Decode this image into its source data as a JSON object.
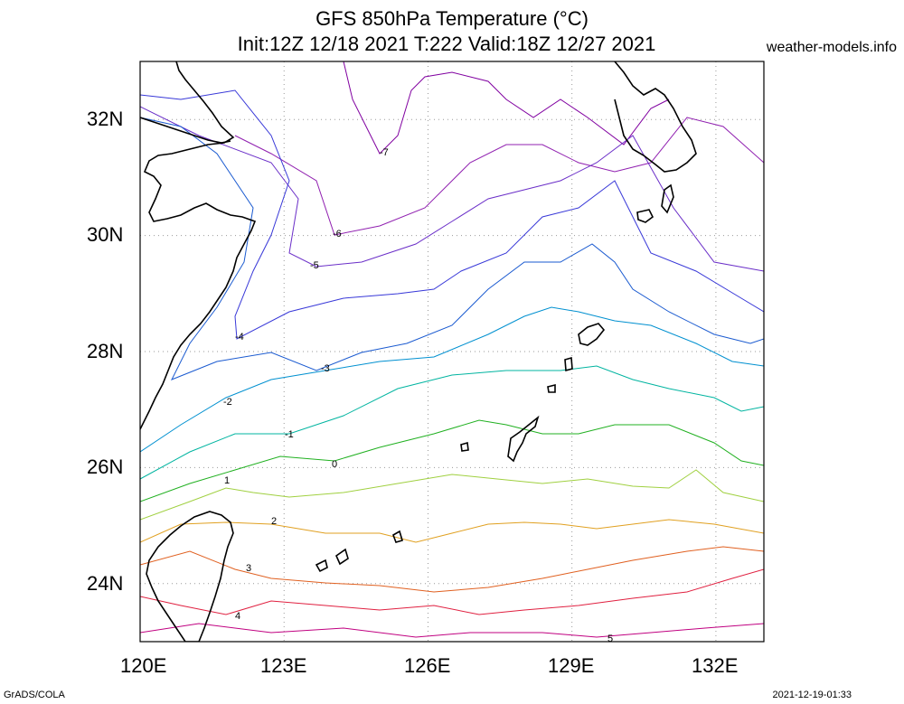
{
  "title_line1": "GFS 850hPa Temperature (°C)",
  "title_line2": "Init:12Z 12/18 2021 T:222 Valid:18Z 12/27 2021",
  "credit": "weather-models.info",
  "lat_ticks": [
    "32N",
    "30N",
    "28N",
    "26N",
    "24N"
  ],
  "lon_ticks": [
    "120E",
    "123E",
    "126E",
    "129E",
    "132E"
  ],
  "footer_left": "GrADS/COLA",
  "footer_right": "2021-12-19-01:33",
  "map_extent": {
    "lon": [
      120,
      133
    ],
    "lat": [
      23,
      33
    ]
  },
  "grid": true,
  "contours": [
    {
      "value": "-7",
      "color": "#8000a0"
    },
    {
      "value": "-6",
      "color": "#9020b0"
    },
    {
      "value": "-5",
      "color": "#6a2ec8"
    },
    {
      "value": "-4",
      "color": "#3838d8"
    },
    {
      "value": "-3",
      "color": "#1a5ad0"
    },
    {
      "value": "-2",
      "color": "#0090d0"
    },
    {
      "value": "-1",
      "color": "#00b4a0"
    },
    {
      "value": "0",
      "color": "#20b020"
    },
    {
      "value": "1",
      "color": "#a0d040"
    },
    {
      "value": "2",
      "color": "#e0a020"
    },
    {
      "value": "3",
      "color": "#e06020"
    },
    {
      "value": "4",
      "color": "#e02040"
    },
    {
      "value": "5",
      "color": "#c00080"
    }
  ]
}
